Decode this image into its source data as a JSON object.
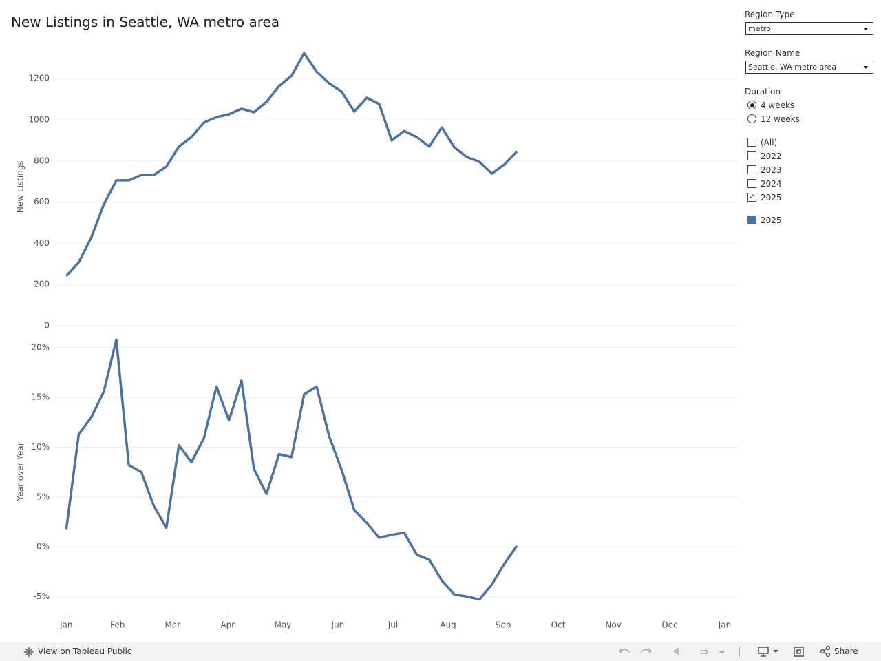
{
  "title": "New Listings in Seattle, WA metro area",
  "chart_data": [
    {
      "type": "line",
      "y_label": "New Listings",
      "x": [
        0,
        1,
        2,
        3,
        4,
        5,
        6,
        7,
        8,
        9,
        10,
        11,
        12,
        13,
        14,
        15,
        16,
        17,
        18,
        19,
        20,
        21,
        22,
        23,
        24,
        25,
        26,
        27,
        28,
        29,
        30,
        31,
        32,
        33,
        34,
        35,
        36
      ],
      "xlim": [
        -1,
        53.7
      ],
      "series": [
        {
          "name": "2025",
          "color": "#4a73a3",
          "values": [
            241,
            308,
            428,
            589,
            706,
            706,
            732,
            732,
            773,
            870,
            916,
            987,
            1013,
            1027,
            1054,
            1037,
            1087,
            1164,
            1214,
            1324,
            1234,
            1177,
            1137,
            1040,
            1107,
            1077,
            900,
            946,
            916,
            870,
            963,
            866,
            819,
            796,
            739,
            783,
            846
          ]
        }
      ],
      "ylim": [
        0,
        1350
      ],
      "yticks": [
        0,
        200,
        400,
        600,
        800,
        1000,
        1200
      ],
      "grid": true
    },
    {
      "type": "line",
      "y_label": "Year over Year",
      "x": [
        0,
        1,
        2,
        3,
        4,
        5,
        6,
        7,
        8,
        9,
        10,
        11,
        12,
        13,
        14,
        15,
        16,
        17,
        18,
        19,
        20,
        21,
        22,
        23,
        24,
        25,
        26,
        27,
        28,
        29,
        30,
        31,
        32,
        33,
        34,
        35,
        36
      ],
      "xlim": [
        -1,
        53.7
      ],
      "xticks": [
        {
          "value": 0,
          "label": "Jan"
        },
        {
          "value": 4.1,
          "label": "Feb"
        },
        {
          "value": 8.5,
          "label": "Mar"
        },
        {
          "value": 12.9,
          "label": "Apr"
        },
        {
          "value": 17.3,
          "label": "May"
        },
        {
          "value": 21.7,
          "label": "Jun"
        },
        {
          "value": 26.1,
          "label": "Jul"
        },
        {
          "value": 30.5,
          "label": "Aug"
        },
        {
          "value": 34.9,
          "label": "Sep"
        },
        {
          "value": 39.3,
          "label": "Oct"
        },
        {
          "value": 43.7,
          "label": "Nov"
        },
        {
          "value": 48.2,
          "label": "Dec"
        },
        {
          "value": 52.6,
          "label": "Jan"
        }
      ],
      "series": [
        {
          "name": "2025",
          "color": "#4a73a3",
          "values": [
            1.7,
            11.3,
            13.0,
            15.6,
            20.8,
            8.2,
            7.5,
            4.1,
            1.9,
            10.2,
            8.5,
            10.9,
            16.1,
            12.7,
            16.7,
            7.8,
            5.3,
            9.3,
            9.0,
            15.3,
            16.1,
            11.1,
            7.7,
            3.7,
            2.4,
            0.9,
            1.2,
            1.4,
            -0.8,
            -1.3,
            -3.4,
            -4.8,
            -5.0,
            -5.3,
            -3.8,
            -1.7,
            0.1
          ]
        }
      ],
      "ylim": [
        -6.6,
        21.7
      ],
      "yticks": [
        {
          "value": -5,
          "label": "-5%"
        },
        {
          "value": 0,
          "label": "0%"
        },
        {
          "value": 5,
          "label": "5%"
        },
        {
          "value": 10,
          "label": "10%"
        },
        {
          "value": 15,
          "label": "15%"
        },
        {
          "value": 20,
          "label": "20%"
        }
      ],
      "grid": true
    }
  ],
  "filters": {
    "region_type": {
      "label": "Region Type",
      "value": "metro"
    },
    "region_name": {
      "label": "Region Name",
      "value": "Seattle, WA metro area"
    },
    "duration": {
      "label": "Duration",
      "options": [
        "4 weeks",
        "12 weeks"
      ],
      "selected": 0
    },
    "years": {
      "options": [
        "(All)",
        "2022",
        "2023",
        "2024",
        "2025"
      ],
      "checked": [
        false,
        false,
        false,
        false,
        true
      ]
    }
  },
  "footer": {
    "view": "View on Tableau Public",
    "share": "Share"
  }
}
